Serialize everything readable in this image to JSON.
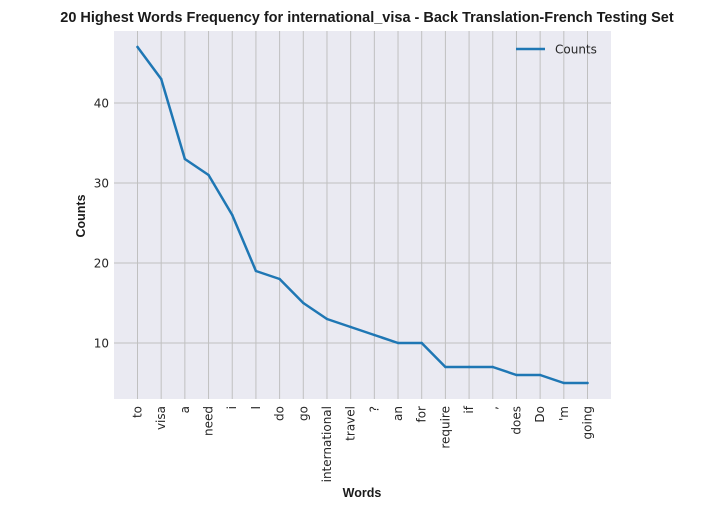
{
  "chart_data": {
    "type": "line",
    "title": "20 Highest Words Frequency for international_visa - Back Translation-French Testing Set",
    "xlabel": "Words",
    "ylabel": "Counts",
    "categories": [
      "to",
      "visa",
      "a",
      "need",
      "i",
      "I",
      "do",
      "go",
      "international",
      "travel",
      "?",
      "an",
      "for",
      "require",
      "if",
      ",",
      "does",
      "Do",
      "'m",
      "going"
    ],
    "series": [
      {
        "name": "Counts",
        "values": [
          47,
          43,
          33,
          31,
          26,
          19,
          18,
          15,
          13,
          12,
          11,
          10,
          10,
          7,
          7,
          7,
          6,
          6,
          5,
          5
        ]
      }
    ],
    "yticks": [
      10,
      20,
      30,
      40
    ],
    "ylim": [
      3.0,
      49.0
    ],
    "grid": true,
    "legend": "top-right",
    "colors": {
      "line": "#1f77b4",
      "background": "#eaeaf2",
      "grid": "#c0c0c0"
    }
  }
}
